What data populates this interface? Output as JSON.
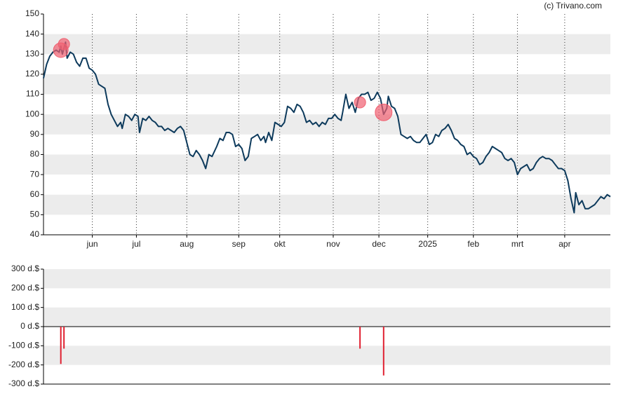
{
  "credit": "(c) Trivano.com",
  "chart_data": [
    {
      "type": "line",
      "xlim": [
        0,
        360
      ],
      "xticks": [
        {
          "value": 31,
          "label": "jun"
        },
        {
          "value": 59,
          "label": "jul"
        },
        {
          "value": 91,
          "label": "aug"
        },
        {
          "value": 124,
          "label": "sep"
        },
        {
          "value": 150,
          "label": "okt"
        },
        {
          "value": 184,
          "label": "nov"
        },
        {
          "value": 213,
          "label": "dec"
        },
        {
          "value": 244,
          "label": "2025"
        },
        {
          "value": 273,
          "label": "feb"
        },
        {
          "value": 301,
          "label": "mrt"
        },
        {
          "value": 331,
          "label": "apr"
        }
      ],
      "ylim": [
        40,
        150
      ],
      "yticks": [
        40,
        50,
        60,
        70,
        80,
        90,
        100,
        110,
        120,
        130,
        140,
        150
      ],
      "bands": [
        [
          50,
          60
        ],
        [
          70,
          80
        ],
        [
          90,
          100
        ],
        [
          110,
          120
        ],
        [
          130,
          140
        ]
      ],
      "series": [
        {
          "color": "#0d3a5c",
          "x": [
            0,
            2,
            4,
            6,
            8,
            10,
            11,
            12,
            13,
            14,
            15,
            17,
            19,
            21,
            23,
            25,
            27,
            29,
            31,
            33,
            35,
            37,
            39,
            41,
            43,
            45,
            47,
            49,
            50,
            52,
            54,
            56,
            58,
            60,
            61,
            63,
            65,
            67,
            69,
            71,
            73,
            75,
            77,
            79,
            81,
            83,
            85,
            87,
            89,
            91,
            93,
            95,
            97,
            99,
            101,
            103,
            105,
            107,
            110,
            112,
            114,
            116,
            118,
            120,
            122,
            124,
            126,
            128,
            130,
            132,
            134,
            136,
            138,
            140,
            141,
            143,
            145,
            147,
            149,
            151,
            153,
            155,
            157,
            159,
            161,
            163,
            165,
            167,
            169,
            171,
            173,
            175,
            177,
            179,
            181,
            183,
            185,
            187,
            189,
            190,
            192,
            194,
            196,
            198,
            200,
            202,
            204,
            206,
            208,
            210,
            212,
            214,
            216,
            218,
            219,
            221,
            223,
            225,
            227,
            229,
            231,
            233,
            235,
            237,
            239,
            241,
            243,
            245,
            247,
            249,
            251,
            253,
            255,
            257,
            259,
            261,
            263,
            265,
            267,
            269,
            271,
            273,
            275,
            277,
            279,
            281,
            283,
            285,
            287,
            289,
            291,
            293,
            295,
            297,
            299,
            301,
            303,
            305,
            307,
            309,
            311,
            313,
            315,
            317,
            319,
            321,
            323,
            325,
            327,
            329,
            331,
            333,
            335,
            337,
            338,
            340,
            342,
            344,
            346,
            348,
            350,
            352,
            354,
            356,
            358,
            360
          ],
          "values": [
            118,
            125,
            129,
            131,
            132,
            131,
            134,
            130,
            133,
            136,
            128,
            131,
            130,
            126,
            124,
            128,
            128,
            123,
            122,
            120,
            115,
            114,
            113,
            105,
            100,
            97,
            94,
            96,
            93,
            100,
            99,
            97,
            100,
            99,
            91,
            98,
            97,
            99,
            97,
            96,
            94,
            94,
            92,
            93,
            92,
            91,
            93,
            94,
            92,
            86,
            80,
            79,
            82,
            80,
            77,
            73,
            80,
            79,
            84,
            88,
            87,
            91,
            91,
            90,
            84,
            85,
            83,
            77,
            79,
            88,
            89,
            90,
            87,
            89,
            86,
            91,
            87,
            96,
            95,
            94,
            96,
            104,
            103,
            101,
            105,
            104,
            101,
            96,
            97,
            95,
            96,
            94,
            96,
            95,
            98,
            98,
            100,
            98,
            97,
            101,
            110,
            103,
            106,
            101,
            108,
            110,
            110,
            111,
            107,
            108,
            111,
            108,
            100,
            103,
            109,
            104,
            103,
            99,
            90,
            89,
            88,
            89,
            87,
            86,
            86,
            88,
            90,
            85,
            86,
            90,
            89,
            92,
            93,
            95,
            92,
            88,
            87,
            85,
            84,
            80,
            81,
            79,
            78,
            75,
            76,
            79,
            81,
            84,
            83,
            82,
            81,
            78,
            77,
            78,
            76,
            70,
            73,
            74,
            75,
            72,
            73,
            76,
            78,
            79,
            78,
            78,
            77,
            75,
            73,
            73,
            72,
            67,
            58,
            51,
            61,
            55,
            57,
            53,
            53,
            54,
            55,
            57,
            59,
            58,
            60,
            59
          ]
        }
      ],
      "markers": {
        "color": "#f06070",
        "x": [
          11,
          13,
          201,
          216
        ],
        "values": [
          132,
          135,
          106,
          101
        ]
      }
    },
    {
      "type": "bar",
      "xlim": [
        0,
        360
      ],
      "color": "#e02030",
      "x": [
        11,
        13,
        201,
        216
      ],
      "values": [
        -195,
        -115,
        -115,
        -255
      ],
      "ylim": [
        -300,
        300
      ],
      "yticks": [
        {
          "value": -300,
          "label": "-300 d.$"
        },
        {
          "value": -200,
          "label": "-200 d.$"
        },
        {
          "value": -100,
          "label": "-100 d.$"
        },
        {
          "value": 0,
          "label": "0 d.$"
        },
        {
          "value": 100,
          "label": "100 d.$"
        },
        {
          "value": 200,
          "label": "200 d.$"
        },
        {
          "value": 300,
          "label": "300 d.$"
        }
      ],
      "bands": [
        [
          -200,
          -100
        ],
        [
          0,
          100
        ],
        [
          200,
          300
        ]
      ]
    }
  ]
}
